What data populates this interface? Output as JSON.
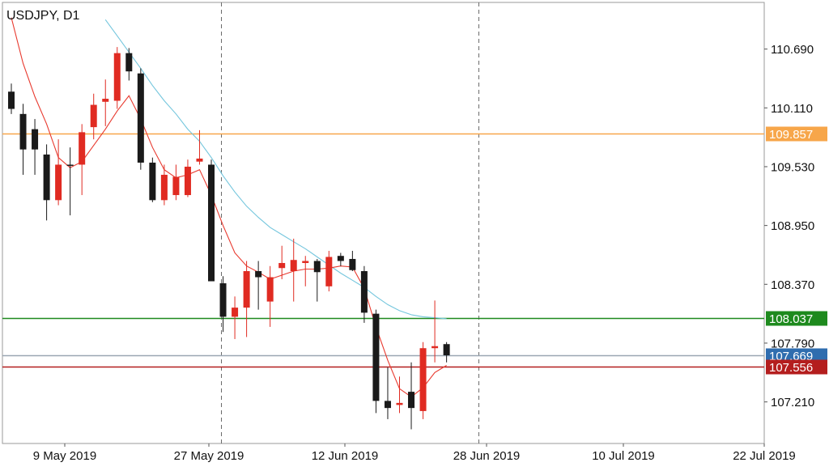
{
  "chart_data": {
    "type": "candlestick",
    "title": "USDJPY, D1",
    "x_labels": [
      "9 May 2019",
      "27 May 2019",
      "12 Jun 2019",
      "28 Jun 2019",
      "10 Jul 2019",
      "22 Jul 2019"
    ],
    "y_ticks": [
      110.69,
      110.11,
      109.53,
      108.95,
      108.37,
      107.79,
      107.21
    ],
    "ylim": [
      106.8,
      111.15
    ],
    "grid": "vertical dashed period separators only",
    "candles": [
      {
        "open": 110.27,
        "high": 110.35,
        "low": 110.05,
        "close": 110.1
      },
      {
        "open": 110.05,
        "high": 110.15,
        "low": 109.45,
        "close": 109.7
      },
      {
        "open": 109.9,
        "high": 110.0,
        "low": 109.45,
        "close": 109.7
      },
      {
        "open": 109.65,
        "high": 109.75,
        "low": 109.0,
        "close": 109.2
      },
      {
        "open": 109.2,
        "high": 109.8,
        "low": 109.15,
        "close": 109.55
      },
      {
        "open": 109.55,
        "high": 109.72,
        "low": 109.05,
        "close": 109.54
      },
      {
        "open": 109.55,
        "high": 109.95,
        "low": 109.25,
        "close": 109.87
      },
      {
        "open": 109.92,
        "high": 110.25,
        "low": 109.8,
        "close": 110.14
      },
      {
        "open": 110.17,
        "high": 110.39,
        "low": 109.93,
        "close": 110.2
      },
      {
        "open": 110.18,
        "high": 110.71,
        "low": 110.1,
        "close": 110.65
      },
      {
        "open": 110.65,
        "high": 110.7,
        "low": 110.38,
        "close": 110.47
      },
      {
        "open": 110.45,
        "high": 110.5,
        "low": 109.5,
        "close": 109.57
      },
      {
        "open": 109.57,
        "high": 109.62,
        "low": 109.18,
        "close": 109.2
      },
      {
        "open": 109.2,
        "high": 109.55,
        "low": 109.15,
        "close": 109.45
      },
      {
        "open": 109.25,
        "high": 109.55,
        "low": 109.2,
        "close": 109.43
      },
      {
        "open": 109.25,
        "high": 109.6,
        "low": 109.23,
        "close": 109.53
      },
      {
        "open": 109.58,
        "high": 109.89,
        "low": 109.55,
        "close": 109.61
      },
      {
        "open": 109.55,
        "high": 109.6,
        "low": 108.4,
        "close": 108.4
      },
      {
        "open": 108.38,
        "high": 108.45,
        "low": 107.9,
        "close": 108.05
      },
      {
        "open": 108.05,
        "high": 108.25,
        "low": 107.83,
        "close": 108.14
      },
      {
        "open": 108.14,
        "high": 108.6,
        "low": 107.85,
        "close": 108.5
      },
      {
        "open": 108.5,
        "high": 108.6,
        "low": 108.12,
        "close": 108.44
      },
      {
        "open": 108.2,
        "high": 108.55,
        "low": 107.95,
        "close": 108.44
      },
      {
        "open": 108.53,
        "high": 108.75,
        "low": 108.42,
        "close": 108.58
      },
      {
        "open": 108.5,
        "high": 108.82,
        "low": 108.2,
        "close": 108.61
      },
      {
        "open": 108.58,
        "high": 108.65,
        "low": 108.35,
        "close": 108.6
      },
      {
        "open": 108.6,
        "high": 108.62,
        "low": 108.2,
        "close": 108.49
      },
      {
        "open": 108.35,
        "high": 108.7,
        "low": 108.3,
        "close": 108.64
      },
      {
        "open": 108.65,
        "high": 108.68,
        "low": 108.55,
        "close": 108.6
      },
      {
        "open": 108.62,
        "high": 108.7,
        "low": 108.5,
        "close": 108.51
      },
      {
        "open": 108.5,
        "high": 108.55,
        "low": 107.99,
        "close": 108.09
      },
      {
        "open": 108.08,
        "high": 108.12,
        "low": 107.1,
        "close": 107.22
      },
      {
        "open": 107.22,
        "high": 107.55,
        "low": 107.04,
        "close": 107.15
      },
      {
        "open": 107.18,
        "high": 107.46,
        "low": 107.1,
        "close": 107.2
      },
      {
        "open": 107.31,
        "high": 107.6,
        "low": 106.94,
        "close": 107.15
      },
      {
        "open": 107.12,
        "high": 107.8,
        "low": 107.04,
        "close": 107.74
      },
      {
        "open": 107.74,
        "high": 108.21,
        "low": 107.6,
        "close": 107.76
      },
      {
        "open": 107.78,
        "high": 107.8,
        "low": 107.6,
        "close": 107.67
      }
    ],
    "ma_fast": [
      111.0,
      110.55,
      110.22,
      109.95,
      109.62,
      109.52,
      109.58,
      109.74,
      109.9,
      110.08,
      110.23,
      110.0,
      109.72,
      109.5,
      109.42,
      109.45,
      109.5,
      109.25,
      108.95,
      108.68,
      108.55,
      108.49,
      108.42,
      108.46,
      108.5,
      108.52,
      108.52,
      108.53,
      108.55,
      108.54,
      108.33,
      107.95,
      107.62,
      107.34,
      107.26,
      107.35,
      107.5,
      107.57
    ],
    "ma_slow": [
      null,
      null,
      null,
      null,
      null,
      null,
      null,
      null,
      110.98,
      110.82,
      110.66,
      110.5,
      110.33,
      110.18,
      110.05,
      109.9,
      109.78,
      109.62,
      109.44,
      109.28,
      109.14,
      109.03,
      108.93,
      108.86,
      108.79,
      108.72,
      108.64,
      108.56,
      108.48,
      108.41,
      108.34,
      108.25,
      108.17,
      108.11,
      108.07,
      108.05,
      108.04,
      108.03
    ],
    "levels": [
      {
        "value": "109.857",
        "color": "#F7A64A"
      },
      {
        "value": "108.037",
        "color": "#1E8A1E"
      },
      {
        "value": "107.669",
        "color": "#2F6DAF"
      },
      {
        "value": "107.556",
        "color": "#B41E1E"
      }
    ],
    "colors": {
      "bull": "#E02B22",
      "bear": "#1A1A1A",
      "ma_fast": "#E8392E",
      "ma_slow": "#74C6DD",
      "current_line": "#9AA6B2"
    }
  }
}
